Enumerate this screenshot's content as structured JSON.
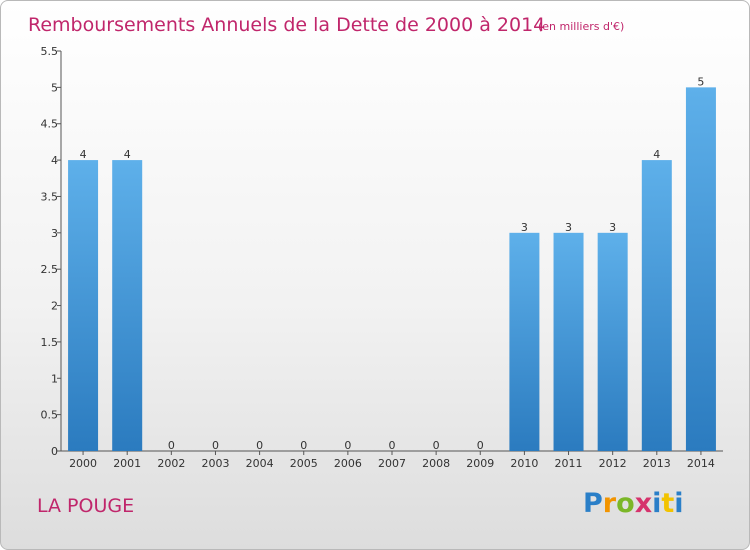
{
  "page": {
    "commune": "LA POUGE",
    "logo": {
      "letters": [
        "P",
        "r",
        "o",
        "x",
        "i",
        "t",
        "i"
      ],
      "colors": [
        "#2a7fc8",
        "#f29400",
        "#7bb728",
        "#d6336c",
        "#2a7fc8",
        "#f2c300",
        "#2a7fc8"
      ]
    }
  },
  "chart_data": {
    "type": "bar",
    "title": "Remboursements Annuels de la Dette de 2000 à 2014",
    "subtitle": "(en milliers d'€)",
    "categories": [
      "2000",
      "2001",
      "2002",
      "2003",
      "2004",
      "2005",
      "2006",
      "2007",
      "2008",
      "2009",
      "2010",
      "2011",
      "2012",
      "2013",
      "2014"
    ],
    "values": [
      4,
      4,
      0,
      0,
      0,
      0,
      0,
      0,
      0,
      0,
      3,
      3,
      3,
      4,
      5
    ],
    "value_labels": [
      "4",
      "4",
      "0",
      "0",
      "0",
      "0",
      "0",
      "0",
      "0",
      "0",
      "3",
      "3",
      "3",
      "4",
      "5"
    ],
    "ylim": [
      0,
      5.5
    ],
    "yticks": [
      "0",
      "0.5",
      "1",
      "1.5",
      "2",
      "2.5",
      "3",
      "3.5",
      "4",
      "4.5",
      "5",
      "5.5"
    ],
    "ytick_values": [
      0,
      0.5,
      1,
      1.5,
      2,
      2.5,
      3,
      3.5,
      4,
      4.5,
      5,
      5.5
    ],
    "bar_color_top": "#5eb0ea",
    "bar_color_bottom": "#2b7bbf",
    "grid": false
  }
}
